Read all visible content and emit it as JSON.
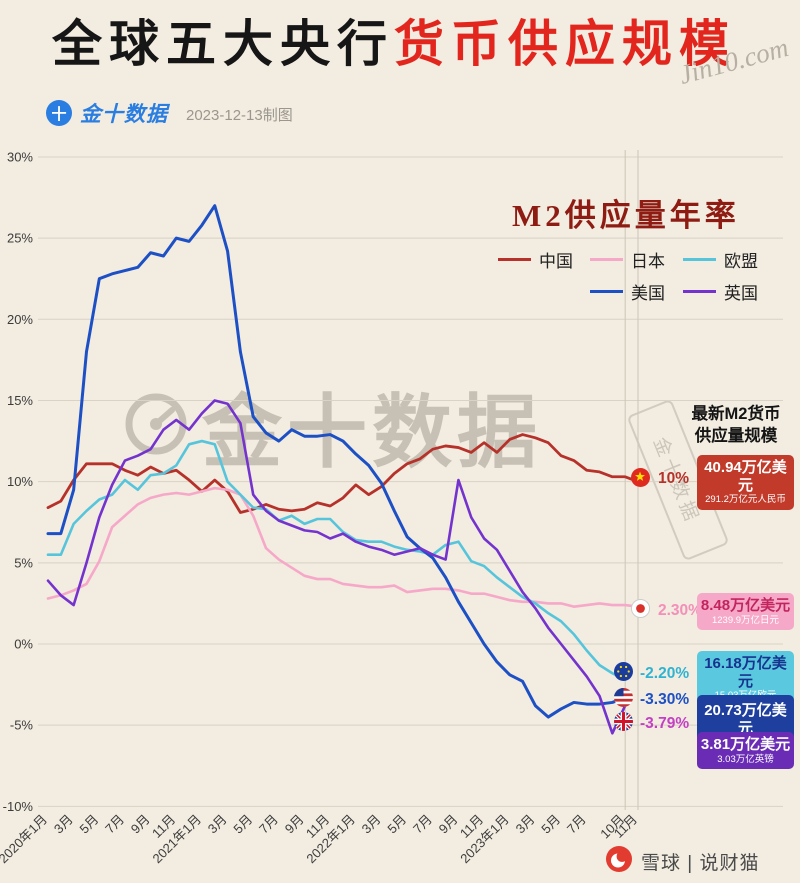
{
  "header": {
    "title_black": "全球五大央行",
    "title_red": "货币供应规模",
    "brand": "金十数据",
    "brand_icon_char": "十",
    "date_note": "2023-12-13制图",
    "corner_watermark": "Jin10.com"
  },
  "subtitle": "M2供应量年率",
  "watermark": {
    "center_text": "金十数据",
    "stamp_text": "金十数据"
  },
  "colors": {
    "background": "#f2ece1",
    "china": "#b63129",
    "china_badge": "#c13a2a",
    "japan": "#f6a8c8",
    "japan_badge": "#f6a8c8",
    "japan_pct": "#f48fb9",
    "japan_text": "#c2255e",
    "eu": "#56c5dc",
    "eu_badge": "#5ac8de",
    "eu_pct": "#2fb3d2",
    "eu_text": "#17338f",
    "us": "#1d50c4",
    "us_badge": "#1e3f9e",
    "uk": "#7433cd",
    "uk_badge": "#6a2cb5",
    "uk_pct": "#c43fc4"
  },
  "chart_data": {
    "type": "line",
    "title": "M2供应量年率",
    "x_unit": "month",
    "x_start": "2020-01",
    "x_end": "2023-11",
    "ylim": [
      -10,
      30
    ],
    "y_ticks": [
      "30%",
      "25%",
      "20%",
      "15%",
      "10%",
      "5%",
      "0%",
      "-5%",
      "-10%"
    ],
    "y_tick_values": [
      30,
      25,
      20,
      15,
      10,
      5,
      0,
      -5,
      -10
    ],
    "grid": true,
    "legend_position": "top-right",
    "highlight_vline_months": [
      45,
      46
    ],
    "x_ticks": [
      {
        "m": 0,
        "label": "2020年1月"
      },
      {
        "m": 2,
        "label": "3月"
      },
      {
        "m": 4,
        "label": "5月"
      },
      {
        "m": 6,
        "label": "7月"
      },
      {
        "m": 8,
        "label": "9月"
      },
      {
        "m": 10,
        "label": "11月"
      },
      {
        "m": 12,
        "label": "2021年1月"
      },
      {
        "m": 14,
        "label": "3月"
      },
      {
        "m": 16,
        "label": "5月"
      },
      {
        "m": 18,
        "label": "7月"
      },
      {
        "m": 20,
        "label": "9月"
      },
      {
        "m": 22,
        "label": "11月"
      },
      {
        "m": 24,
        "label": "2022年1月"
      },
      {
        "m": 26,
        "label": "3月"
      },
      {
        "m": 28,
        "label": "5月"
      },
      {
        "m": 30,
        "label": "7月"
      },
      {
        "m": 32,
        "label": "9月"
      },
      {
        "m": 34,
        "label": "11月"
      },
      {
        "m": 36,
        "label": "2023年1月"
      },
      {
        "m": 38,
        "label": "3月"
      },
      {
        "m": 40,
        "label": "5月"
      },
      {
        "m": 42,
        "label": "7月"
      },
      {
        "m": 45,
        "label": "10月"
      },
      {
        "m": 46,
        "label": "11月"
      }
    ],
    "series": [
      {
        "name": "中国",
        "color_key": "china",
        "width": 2.8,
        "values": [
          8.4,
          8.8,
          10.1,
          11.1,
          11.1,
          11.1,
          10.7,
          10.4,
          10.9,
          10.5,
          10.7,
          10.1,
          9.4,
          10.1,
          9.4,
          8.1,
          8.3,
          8.6,
          8.3,
          8.2,
          8.3,
          8.7,
          8.5,
          9.0,
          9.8,
          9.2,
          9.7,
          10.5,
          11.1,
          11.4,
          12.0,
          12.2,
          12.1,
          11.8,
          12.4,
          11.8,
          12.6,
          12.9,
          12.7,
          12.4,
          11.6,
          11.3,
          10.7,
          10.6,
          10.3,
          10.3,
          10.0
        ]
      },
      {
        "name": "日本",
        "color_key": "japan",
        "width": 2.6,
        "values": [
          2.8,
          3.0,
          3.3,
          3.7,
          5.1,
          7.2,
          7.9,
          8.6,
          9.0,
          9.2,
          9.3,
          9.2,
          9.4,
          9.6,
          9.5,
          9.2,
          7.9,
          5.9,
          5.2,
          4.7,
          4.2,
          4.0,
          4.0,
          3.7,
          3.6,
          3.5,
          3.5,
          3.6,
          3.2,
          3.3,
          3.4,
          3.4,
          3.3,
          3.1,
          3.1,
          2.9,
          2.7,
          2.6,
          2.6,
          2.5,
          2.5,
          2.3,
          2.4,
          2.5,
          2.4,
          2.4,
          2.3
        ]
      },
      {
        "name": "欧盟",
        "color_key": "eu",
        "width": 2.6,
        "values": [
          5.5,
          5.5,
          7.4,
          8.2,
          8.9,
          9.2,
          10.1,
          9.5,
          10.4,
          10.5,
          11.0,
          12.3,
          12.5,
          12.3,
          10.0,
          9.2,
          8.4,
          8.3,
          7.6,
          7.9,
          7.4,
          7.7,
          7.7,
          6.9,
          6.4,
          6.3,
          6.3,
          6.0,
          5.8,
          5.7,
          5.5,
          6.1,
          6.3,
          5.1,
          4.8,
          4.1,
          3.5,
          2.9,
          2.5,
          1.9,
          1.4,
          0.6,
          -0.4,
          -1.3,
          -1.8,
          -2.2
        ]
      },
      {
        "name": "美国",
        "color_key": "us",
        "width": 3,
        "values": [
          6.8,
          6.8,
          9.5,
          18.0,
          22.5,
          22.8,
          23.0,
          23.2,
          24.1,
          23.9,
          25.0,
          24.8,
          25.8,
          27.0,
          24.2,
          18.0,
          14.0,
          13.0,
          12.5,
          13.2,
          12.8,
          12.8,
          12.9,
          12.5,
          11.7,
          11.0,
          9.9,
          8.2,
          6.6,
          5.9,
          5.3,
          4.1,
          2.6,
          1.3,
          0.0,
          -1.1,
          -1.9,
          -2.3,
          -3.8,
          -4.5,
          -4.0,
          -3.6,
          -3.7,
          -3.7,
          -3.6,
          -3.3
        ]
      },
      {
        "name": "英国",
        "color_key": "uk",
        "width": 2.6,
        "values": [
          3.9,
          3.0,
          2.4,
          5.0,
          7.8,
          9.8,
          11.3,
          11.6,
          12.0,
          13.2,
          13.8,
          13.2,
          14.2,
          15.0,
          14.8,
          13.6,
          9.2,
          8.2,
          7.6,
          7.3,
          7.0,
          6.9,
          6.5,
          6.8,
          6.3,
          6.0,
          5.8,
          5.5,
          5.7,
          5.9,
          5.5,
          5.2,
          10.1,
          7.8,
          6.5,
          5.8,
          4.5,
          3.2,
          2.2,
          1.0,
          0.0,
          -1.0,
          -2.0,
          -3.2,
          -5.5,
          -3.79
        ]
      }
    ]
  },
  "annotations": {
    "panel_title_line1": "最新M2货币",
    "panel_title_line2": "供应量规模",
    "china": {
      "pct": "10%",
      "line1": "40.94万亿美元",
      "line2": "291.2万亿元人民币"
    },
    "japan": {
      "pct": "2.30%",
      "line1": "8.48万亿美元",
      "line2": "1239.9万亿日元"
    },
    "eu": {
      "pct": "-2.20%",
      "line1": "16.18万亿美元",
      "line2": "15.03万亿欧元"
    },
    "us": {
      "pct": "-3.30%",
      "line1": "20.73万亿美元"
    },
    "uk": {
      "pct": "-3.79%",
      "line1": "3.81万亿美元",
      "line2": "3.03万亿英镑"
    }
  },
  "footer": {
    "credit": "雪球 | 说财猫"
  }
}
